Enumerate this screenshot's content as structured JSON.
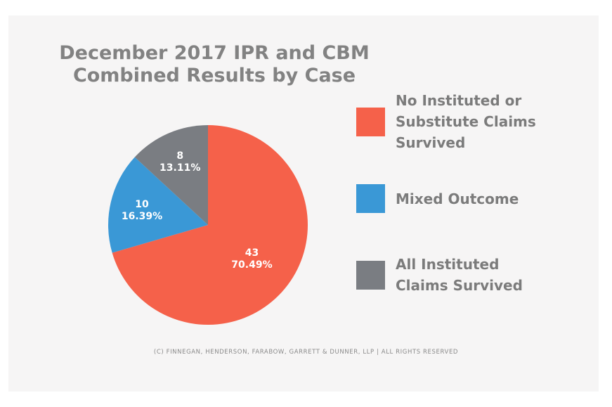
{
  "chart_data": {
    "type": "pie",
    "title": "December 2017 IPR and CBM Combined Results by Case",
    "title_lines": [
      "December 2017 IPR and CBM",
      "Combined Results by Case"
    ],
    "slices": [
      {
        "label": "No Instituted or Substitute Claims Survived",
        "label_lines": [
          "No Instituted or",
          "Substitute Claims",
          "Survived"
        ],
        "value": 43,
        "percent_text": "70.49%",
        "color": "#f5614a"
      },
      {
        "label": "Mixed Outcome",
        "label_lines": [
          "Mixed Outcome"
        ],
        "value": 10,
        "percent_text": "16.39%",
        "color": "#3a98d6"
      },
      {
        "label": "All Instituted Claims Survived",
        "label_lines": [
          "All Instituted",
          "Claims Survived"
        ],
        "value": 8,
        "percent_text": "13.11%",
        "color": "#7a7d82"
      }
    ],
    "legend_position": "right"
  },
  "footer": "(C) FINNEGAN, HENDERSON, FARABOW, GARRETT & DUNNER, LLP | ALL RIGHTS RESERVED"
}
